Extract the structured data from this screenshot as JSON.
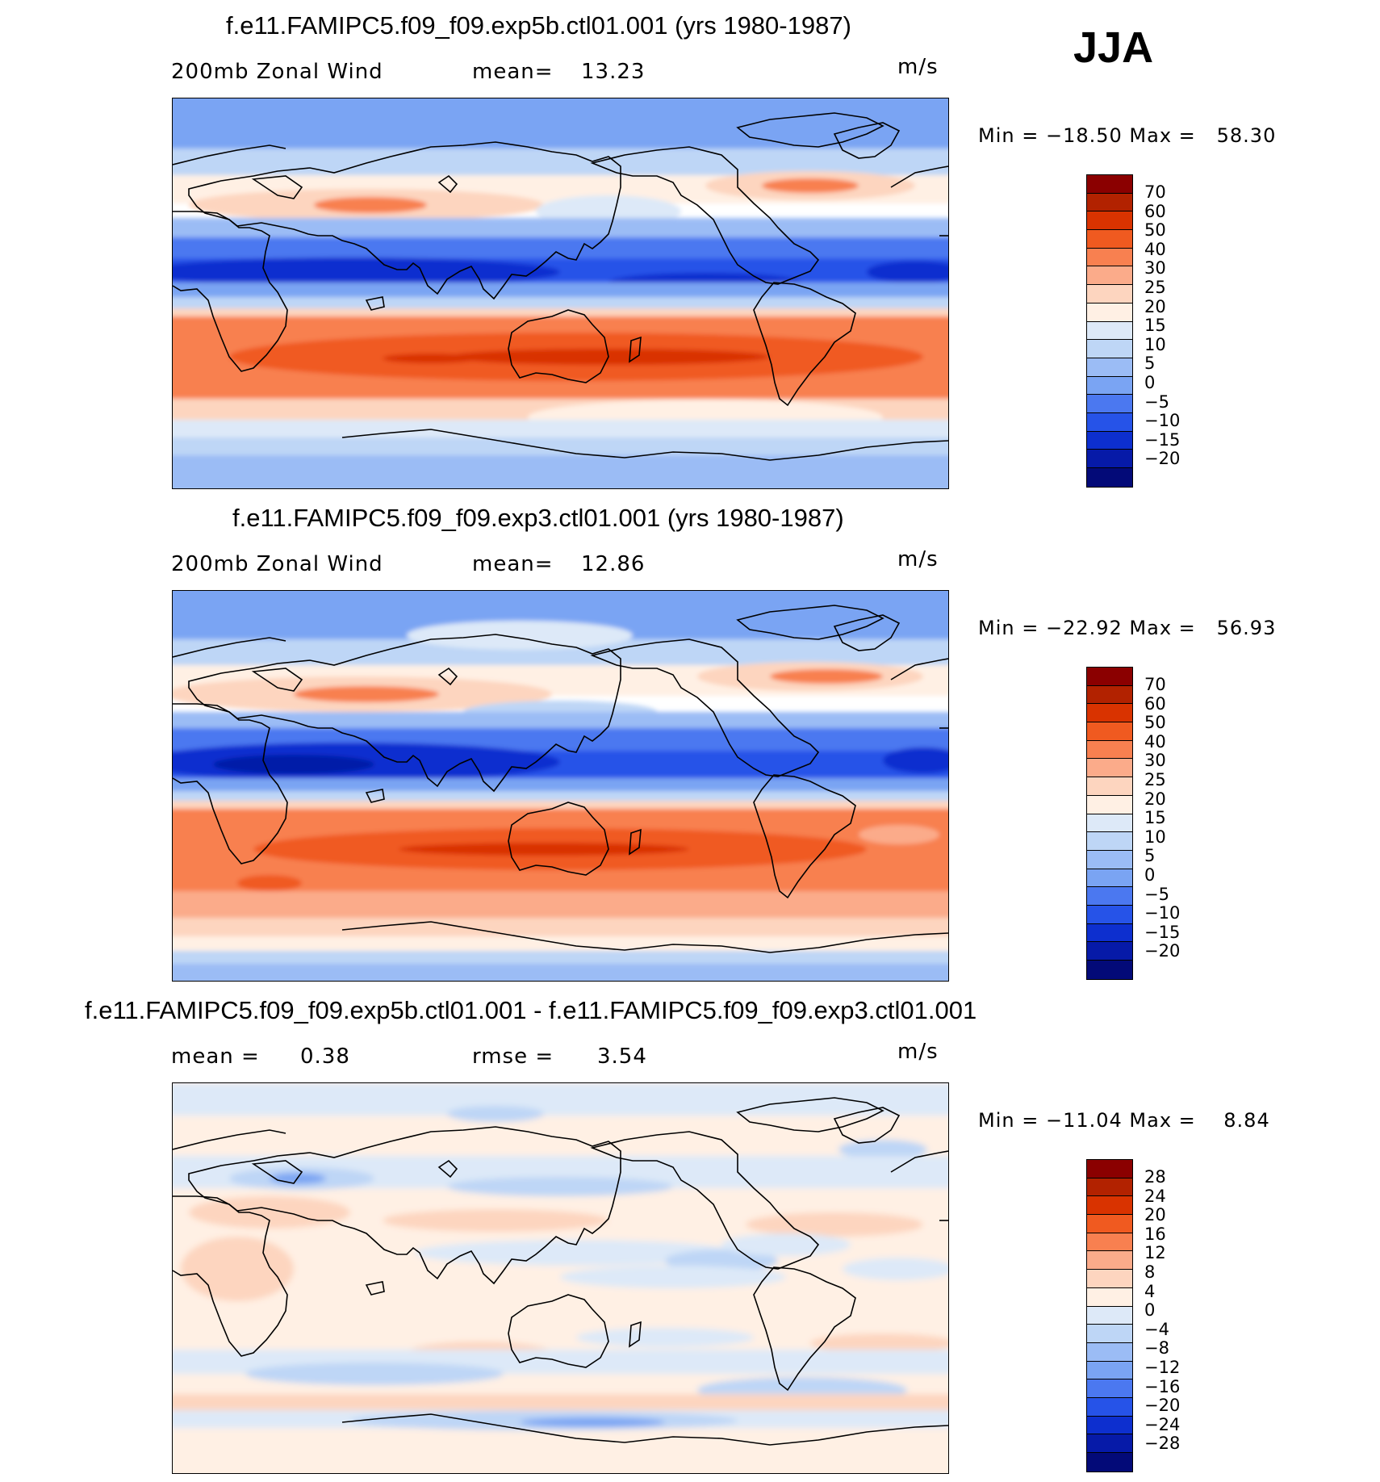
{
  "season": "JJA",
  "panels": [
    {
      "title": "f.e11.FAMIPC5.f09_f09.exp5b.ctl01.001 (yrs 1980-1987)",
      "field": "200mb Zonal Wind",
      "stat1_label": "mean=",
      "stat1_value": "13.23",
      "stat2_label": "",
      "stat2_value": "",
      "units": "m/s",
      "minmax": "Min = −18.50 Max =   58.30",
      "colorbar_ticks": [
        "70",
        "60",
        "50",
        "40",
        "30",
        "25",
        "20",
        "15",
        "10",
        "5",
        "0",
        "−5",
        "−10",
        "−15",
        "−20"
      ],
      "colorbar_colors": [
        "#8b0000",
        "#b22200",
        "#d93300",
        "#f05a20",
        "#f88050",
        "#fbab8a",
        "#fdd5bf",
        "#fff0e4",
        "#dde9f8",
        "#bed6f6",
        "#9bbcf5",
        "#7aa4f3",
        "#4b78f0",
        "#2653e8",
        "#0d2fcf",
        "#061aa8",
        "#030a78"
      ],
      "map_data": {
        "model": "exp5b",
        "tropical_easterly_max": -18.5,
        "sh_jet_max": 58.3
      }
    },
    {
      "title": "f.e11.FAMIPC5.f09_f09.exp3.ctl01.001 (yrs 1980-1987)",
      "field": "200mb Zonal Wind",
      "stat1_label": "mean=",
      "stat1_value": "12.86",
      "stat2_label": "",
      "stat2_value": "",
      "units": "m/s",
      "minmax": "Min = −22.92 Max =   56.93",
      "colorbar_ticks": [
        "70",
        "60",
        "50",
        "40",
        "30",
        "25",
        "20",
        "15",
        "10",
        "5",
        "0",
        "−5",
        "−10",
        "−15",
        "−20"
      ],
      "colorbar_colors": [
        "#8b0000",
        "#b22200",
        "#d93300",
        "#f05a20",
        "#f88050",
        "#fbab8a",
        "#fdd5bf",
        "#fff0e4",
        "#dde9f8",
        "#bed6f6",
        "#9bbcf5",
        "#7aa4f3",
        "#4b78f0",
        "#2653e8",
        "#0d2fcf",
        "#061aa8",
        "#030a78"
      ],
      "map_data": {
        "model": "exp3",
        "tropical_easterly_max": -22.92,
        "sh_jet_max": 56.93
      }
    },
    {
      "title": "f.e11.FAMIPC5.f09_f09.exp5b.ctl01.001 - f.e11.FAMIPC5.f09_f09.exp3.ctl01.001",
      "field": "",
      "stat1_label": "mean =",
      "stat1_value": "0.38",
      "stat2_label": "rmse =",
      "stat2_value": "3.54",
      "units": "m/s",
      "minmax": "Min = −11.04 Max =    8.84",
      "colorbar_ticks": [
        "28",
        "24",
        "20",
        "16",
        "12",
        "8",
        "4",
        "0",
        "−4",
        "−8",
        "−12",
        "−16",
        "−20",
        "−24",
        "−28"
      ],
      "colorbar_colors": [
        "#8b0000",
        "#b22200",
        "#d93300",
        "#f05a20",
        "#f88050",
        "#fbab8a",
        "#fdd5bf",
        "#fff0e4",
        "#dde9f8",
        "#bed6f6",
        "#9bbcf5",
        "#7aa4f3",
        "#4b78f0",
        "#2653e8",
        "#0d2fcf",
        "#061aa8",
        "#030a78"
      ],
      "map_data": {
        "model": "difference",
        "diff_min": -11.04,
        "diff_max": 8.84
      }
    }
  ]
}
